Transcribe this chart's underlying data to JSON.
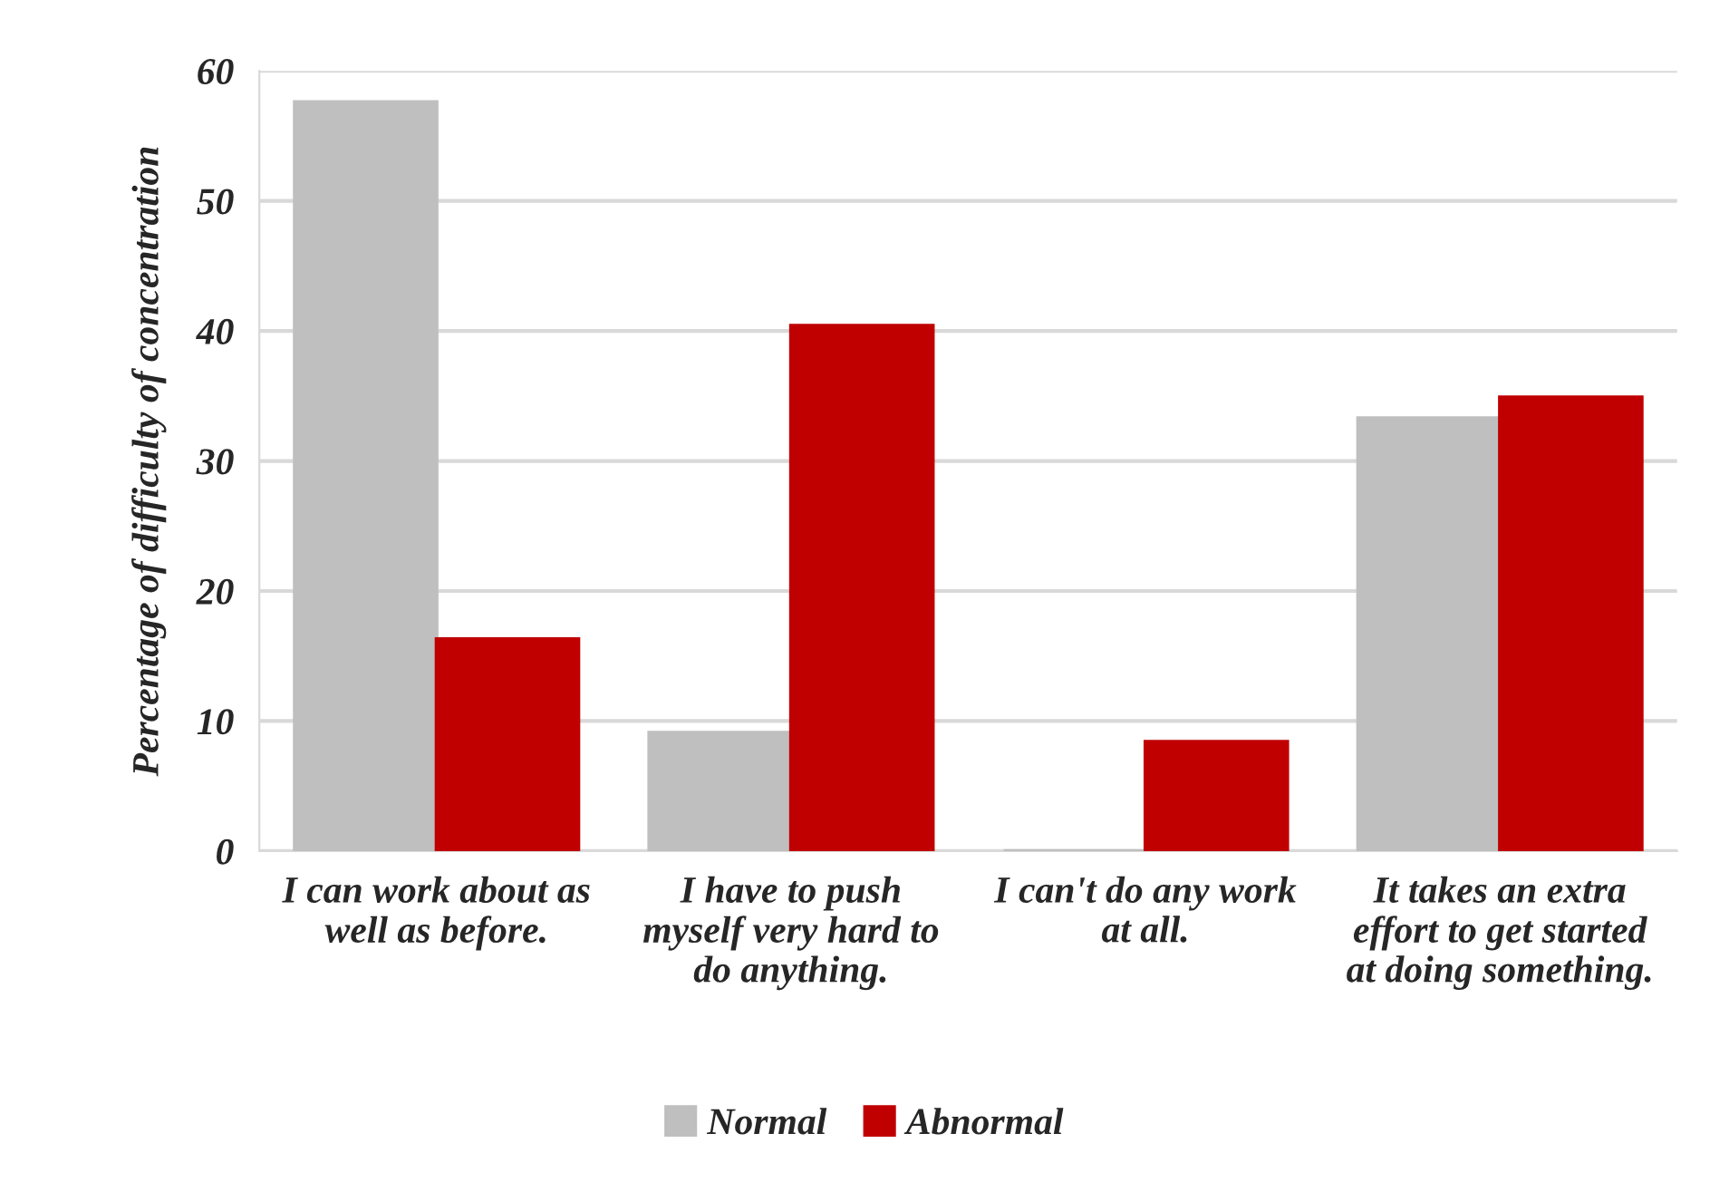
{
  "chart_data": {
    "type": "bar",
    "ylabel": "Percentage of difficulty of concentration",
    "categories": [
      "I can work about as well as before.",
      "I have to push myself very hard to do anything.",
      "I can't do any work at all.",
      "It takes an extra effort to get started at doing something."
    ],
    "series": [
      {
        "name": "Normal",
        "color": "#bfbfbf",
        "values": [
          57.6,
          9.1,
          0,
          33.3
        ]
      },
      {
        "name": "Abnormal",
        "color": "#c00000",
        "values": [
          16.3,
          40.4,
          8.4,
          34.9
        ]
      }
    ],
    "ylim": [
      0,
      60
    ],
    "yticks": [
      0,
      10,
      20,
      30,
      40,
      50,
      60
    ],
    "grid": "y",
    "legend": "bottom"
  }
}
